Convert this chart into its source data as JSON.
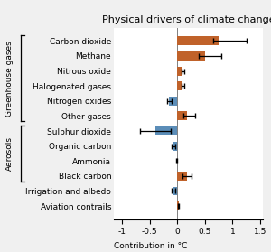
{
  "title": "Physical drivers of climate change",
  "xlabel": "Contribution in °C",
  "categories": [
    "Carbon dioxide",
    "Methane",
    "Nitrous oxide",
    "Halogenated gases",
    "Nitrogen oxides",
    "Other gases",
    "Sulphur dioxide",
    "Organic carbon",
    "Ammonia",
    "Black carbon",
    "Irrigation and albedo",
    "Aviation contrails"
  ],
  "values": [
    0.75,
    0.5,
    0.1,
    0.1,
    -0.15,
    0.18,
    -0.4,
    -0.07,
    -0.01,
    0.18,
    -0.07,
    0.02
  ],
  "errors_low": [
    0.1,
    0.12,
    0.03,
    0.03,
    0.04,
    0.07,
    0.28,
    0.04,
    0.01,
    0.08,
    0.03,
    0.01
  ],
  "errors_high": [
    0.5,
    0.3,
    0.03,
    0.03,
    0.04,
    0.15,
    0.28,
    0.04,
    0.01,
    0.08,
    0.03,
    0.01
  ],
  "bar_colors": [
    "#c0622a",
    "#c0622a",
    "#c0622a",
    "#c0622a",
    "#5b8db8",
    "#c0622a",
    "#5b8db8",
    "#5b8db8",
    "#5b8db8",
    "#c0622a",
    "#5b8db8",
    "#c0622a"
  ],
  "group_labels": [
    "Greenhouse gases",
    "Aerosols"
  ],
  "gh_rows": [
    0,
    5
  ],
  "ae_rows": [
    6,
    9
  ],
  "xlim": [
    -1.15,
    1.55
  ],
  "xticks": [
    -1,
    -0.5,
    0,
    0.5,
    1,
    1.5
  ],
  "xtick_labels": [
    "-1",
    "-0.5",
    "0",
    "0.5",
    "1",
    "1.5"
  ],
  "plot_bg": "#ffffff",
  "fig_bg": "#f0f0f0",
  "title_fontsize": 8,
  "label_fontsize": 6.5,
  "tick_fontsize": 6.5
}
